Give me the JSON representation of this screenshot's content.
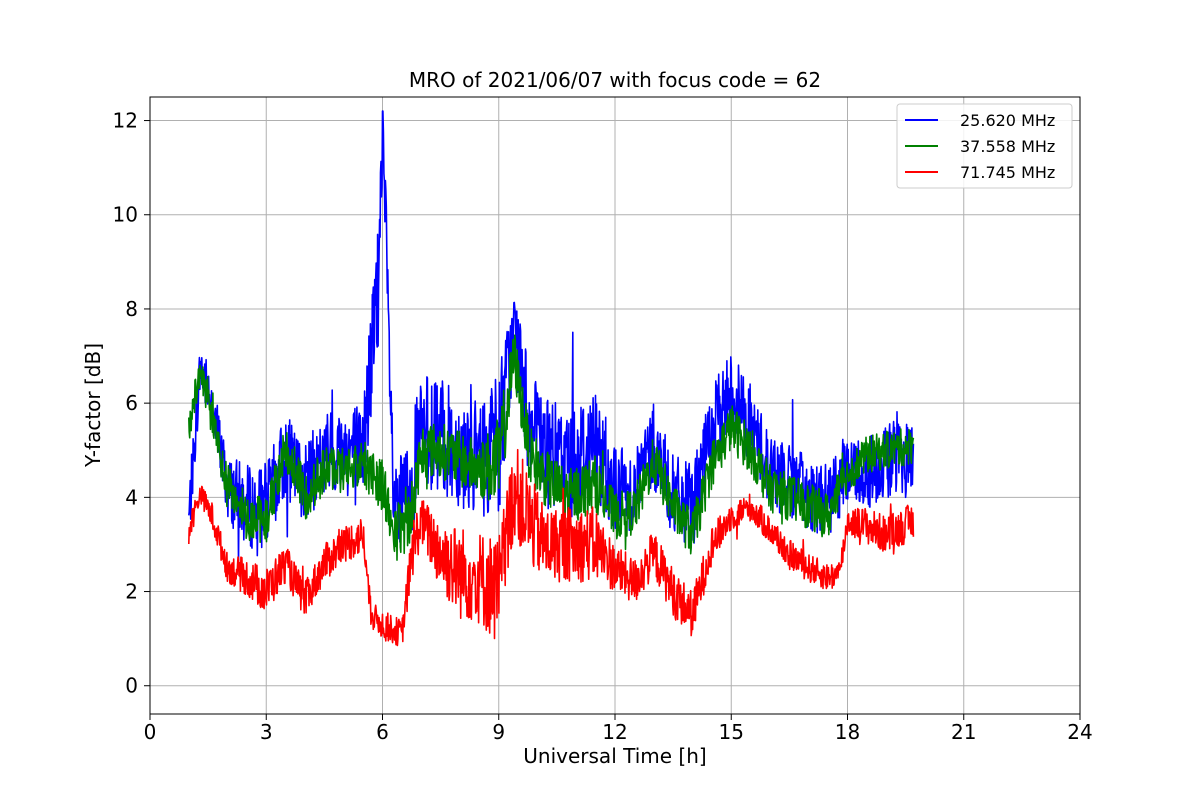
{
  "chart_data": {
    "type": "line",
    "title": "MRO of 2021/06/07 with focus code = 62",
    "xlabel": "Universal Time [h]",
    "ylabel": "Y-factor [dB]",
    "xlim": [
      0,
      24
    ],
    "ylim": [
      -0.6,
      12.5
    ],
    "xticks": [
      0,
      3,
      6,
      9,
      12,
      15,
      18,
      21,
      24
    ],
    "yticks": [
      0,
      2,
      4,
      6,
      8,
      10,
      12
    ],
    "grid": true,
    "legend_position": "top-right",
    "series": [
      {
        "name": "25.620 MHz",
        "color": "#0000ff",
        "x": [
          1.0,
          1.3,
          1.6,
          2.0,
          2.5,
          3.0,
          3.5,
          4.0,
          4.5,
          5.0,
          5.5,
          5.9,
          6.0,
          6.3,
          6.7,
          7.0,
          7.5,
          8.0,
          8.5,
          9.0,
          9.4,
          9.8,
          10.2,
          10.8,
          11.5,
          12.0,
          12.5,
          13.0,
          13.5,
          14.0,
          14.5,
          15.0,
          15.5,
          16.0,
          16.5,
          17.0,
          17.5,
          18.0,
          18.5,
          19.0,
          19.7
        ],
        "y": [
          3.5,
          6.8,
          6.0,
          4.2,
          3.8,
          3.8,
          4.9,
          4.3,
          4.9,
          5.0,
          5.1,
          8.5,
          11.9,
          3.5,
          4.2,
          5.4,
          5.3,
          5.0,
          4.8,
          5.2,
          7.6,
          5.5,
          5.0,
          4.7,
          5.2,
          4.2,
          4.2,
          5.1,
          4.0,
          3.8,
          5.4,
          6.3,
          5.5,
          4.6,
          4.3,
          4.1,
          3.9,
          4.6,
          4.5,
          4.8,
          4.8
        ],
        "spread": [
          0.6,
          0.6,
          0.6,
          0.7,
          0.9,
          0.9,
          0.9,
          0.8,
          1.0,
          1.0,
          1.0,
          1.6,
          1.2,
          1.0,
          1.2,
          1.2,
          1.2,
          1.2,
          1.2,
          1.6,
          0.9,
          1.2,
          1.1,
          1.2,
          1.2,
          0.9,
          0.9,
          0.9,
          0.9,
          0.9,
          0.9,
          0.9,
          0.9,
          0.8,
          0.8,
          0.8,
          0.8,
          0.8,
          0.8,
          0.8,
          0.8
        ]
      },
      {
        "name": "37.558 MHz",
        "color": "#008000",
        "x": [
          1.0,
          1.3,
          1.6,
          2.0,
          2.5,
          3.0,
          3.5,
          4.0,
          4.5,
          5.0,
          5.5,
          6.0,
          6.3,
          6.7,
          7.0,
          7.5,
          8.0,
          8.5,
          9.0,
          9.4,
          9.8,
          10.2,
          10.8,
          11.5,
          12.0,
          12.5,
          13.0,
          13.5,
          14.0,
          14.5,
          15.0,
          15.5,
          16.0,
          16.5,
          17.0,
          17.5,
          18.0,
          18.5,
          19.0,
          19.7
        ],
        "y": [
          5.5,
          6.7,
          5.6,
          4.3,
          3.6,
          3.5,
          5.1,
          4.0,
          4.6,
          4.6,
          4.7,
          4.3,
          3.2,
          3.5,
          5.0,
          5.0,
          4.8,
          4.6,
          4.7,
          7.0,
          4.9,
          4.4,
          4.0,
          4.3,
          3.6,
          3.7,
          4.8,
          3.8,
          3.2,
          4.7,
          5.5,
          5.0,
          4.2,
          4.0,
          3.8,
          3.6,
          4.5,
          4.9,
          5.0,
          5.1
        ],
        "spread": [
          0.4,
          0.3,
          0.4,
          0.4,
          0.5,
          0.5,
          0.5,
          0.5,
          0.5,
          0.5,
          0.5,
          0.6,
          0.6,
          0.6,
          0.6,
          0.6,
          0.6,
          0.6,
          1.0,
          0.6,
          0.6,
          0.6,
          0.6,
          0.6,
          0.5,
          0.5,
          0.5,
          0.5,
          0.5,
          0.5,
          0.5,
          0.5,
          0.5,
          0.5,
          0.5,
          0.5,
          0.4,
          0.4,
          0.4,
          0.4
        ]
      },
      {
        "name": "71.745 MHz",
        "color": "#ff0000",
        "x": [
          1.0,
          1.3,
          1.6,
          2.0,
          2.5,
          3.0,
          3.5,
          4.0,
          4.5,
          5.0,
          5.5,
          5.7,
          6.0,
          6.5,
          6.8,
          7.0,
          7.5,
          8.0,
          8.5,
          9.0,
          9.4,
          9.8,
          10.2,
          10.8,
          11.5,
          12.0,
          12.5,
          13.0,
          13.5,
          14.0,
          14.5,
          15.0,
          15.5,
          16.0,
          16.5,
          17.0,
          17.5,
          17.8,
          18.0,
          18.5,
          19.0,
          19.7
        ],
        "y": [
          3.3,
          4.1,
          3.6,
          2.5,
          2.3,
          2.0,
          2.6,
          1.8,
          2.6,
          3.0,
          3.2,
          1.5,
          1.3,
          1.1,
          3.0,
          3.5,
          2.8,
          2.4,
          2.3,
          2.0,
          4.2,
          3.5,
          3.0,
          3.0,
          3.0,
          2.5,
          2.2,
          2.8,
          2.0,
          1.5,
          3.0,
          3.6,
          3.8,
          3.3,
          2.8,
          2.5,
          2.3,
          2.4,
          3.5,
          3.4,
          3.2,
          3.5
        ],
        "spread": [
          0.3,
          0.2,
          0.3,
          0.3,
          0.4,
          0.5,
          0.4,
          0.4,
          0.4,
          0.4,
          0.4,
          0.3,
          0.3,
          0.3,
          0.6,
          0.5,
          0.8,
          1.0,
          1.0,
          1.2,
          1.0,
          1.0,
          0.8,
          0.8,
          0.8,
          0.5,
          0.5,
          0.5,
          0.5,
          0.5,
          0.4,
          0.3,
          0.3,
          0.3,
          0.3,
          0.3,
          0.3,
          0.3,
          0.3,
          0.4,
          0.4,
          0.4
        ]
      }
    ]
  }
}
